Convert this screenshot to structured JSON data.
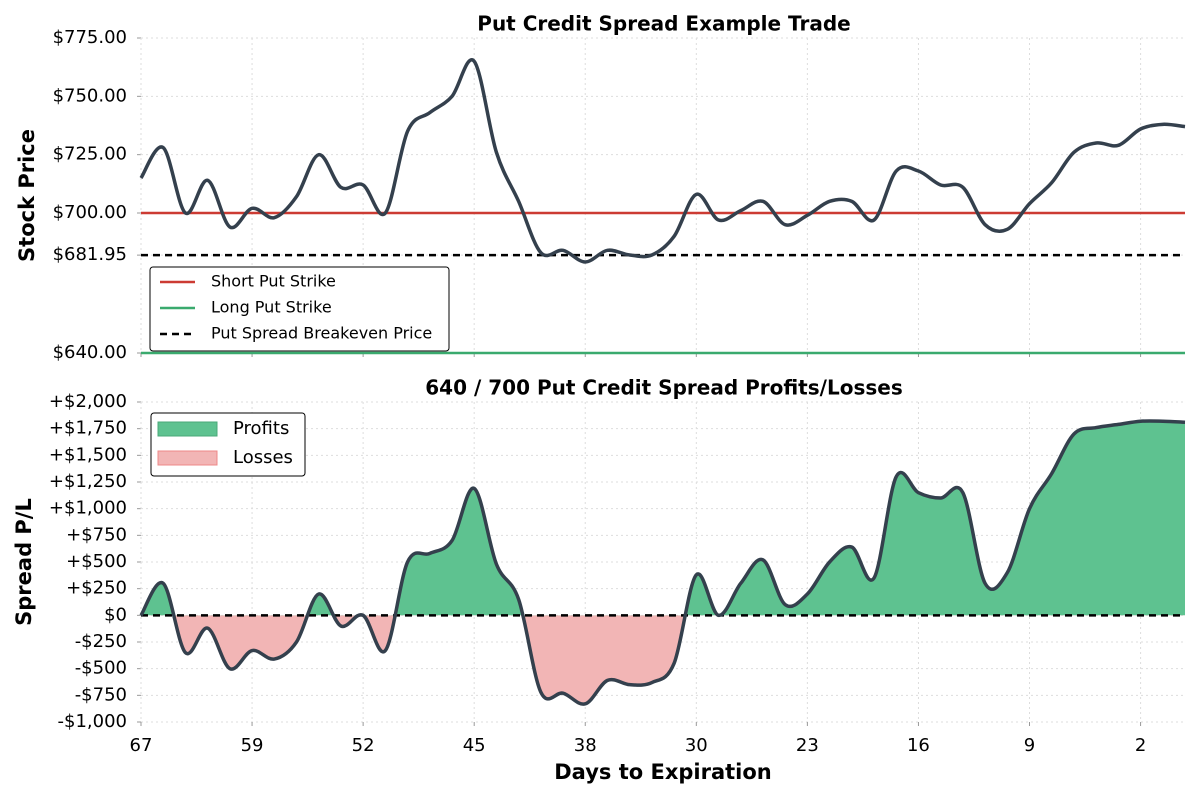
{
  "chart_data": [
    {
      "type": "line",
      "title": "Put Credit Spread Example Trade",
      "ylabel": "Stock Price",
      "x": [
        0,
        1,
        2,
        3,
        4,
        5,
        6,
        7,
        8,
        9,
        10,
        11,
        12,
        13,
        14,
        15,
        16,
        17,
        18,
        19,
        20,
        21,
        22,
        23,
        24,
        25,
        26,
        27,
        28,
        29,
        30,
        31,
        32,
        33,
        34,
        35,
        36,
        37,
        38,
        39,
        40,
        41,
        42,
        43,
        44,
        45,
        46,
        47
      ],
      "values": [
        715,
        728,
        700,
        714,
        694,
        702,
        698,
        707,
        725,
        711,
        712,
        700,
        735,
        743,
        750,
        765,
        726,
        705,
        683,
        684,
        679,
        684,
        682,
        682,
        690,
        708,
        697,
        701,
        705,
        695,
        699,
        705,
        705,
        697,
        718,
        718,
        712,
        711,
        695,
        693,
        704,
        713,
        726,
        730,
        729,
        736,
        738,
        737
      ],
      "color": "#34404d",
      "reference_lines": [
        {
          "name": "Short Put Strike",
          "value": 700,
          "color": "#cc3b33",
          "dash": false
        },
        {
          "name": "Long Put Strike",
          "value": 640,
          "color": "#3aaa6e",
          "dash": false
        },
        {
          "name": "Put Spread Breakeven Price",
          "value": 681.95,
          "color": "#000000",
          "dash": true
        }
      ],
      "xlim": [
        0,
        47
      ],
      "xticks": [
        0,
        5,
        10,
        15,
        20,
        25,
        30,
        35,
        40,
        45
      ],
      "ylim": [
        640,
        775
      ],
      "yticks": [
        {
          "value": 640,
          "label": "$640.00"
        },
        {
          "value": 681.95,
          "label": "$681.95"
        },
        {
          "value": 700,
          "label": "$700.00"
        },
        {
          "value": 725,
          "label": "$725.00"
        },
        {
          "value": 750,
          "label": "$750.00"
        },
        {
          "value": 775,
          "label": "$775.00"
        }
      ],
      "grid": true,
      "legend": "lower left"
    },
    {
      "type": "line",
      "title": "640 / 700 Put Credit Spread Profits/Losses",
      "ylabel": "Spread P/L",
      "xlabel": "Days to Expiration",
      "x": [
        0,
        1,
        2,
        3,
        4,
        5,
        6,
        7,
        8,
        9,
        10,
        11,
        12,
        13,
        14,
        15,
        16,
        17,
        18,
        19,
        20,
        21,
        22,
        23,
        24,
        25,
        26,
        27,
        28,
        29,
        30,
        31,
        32,
        33,
        34,
        35,
        36,
        37,
        38,
        39,
        40,
        41,
        42,
        43,
        44,
        45,
        46,
        47
      ],
      "values": [
        0,
        300,
        -350,
        -120,
        -500,
        -330,
        -410,
        -250,
        200,
        -100,
        0,
        -330,
        500,
        580,
        700,
        1190,
        480,
        150,
        -720,
        -730,
        -830,
        -610,
        -650,
        -630,
        -450,
        380,
        0,
        300,
        520,
        100,
        200,
        500,
        640,
        350,
        1300,
        1150,
        1100,
        1150,
        300,
        400,
        1000,
        1330,
        1700,
        1760,
        1790,
        1820,
        1820,
        1810
      ],
      "color": "#34404d",
      "fills": [
        {
          "name": "Profits",
          "color": "#5ec290",
          "side": "above"
        },
        {
          "name": "Losses",
          "color": "#f2b5b5",
          "side": "below"
        }
      ],
      "reference_lines": [
        {
          "value": 0,
          "color": "#000000",
          "dash": true
        }
      ],
      "xlim": [
        0,
        47
      ],
      "xticks": [
        {
          "value": 0,
          "label": "67"
        },
        {
          "value": 5,
          "label": "59"
        },
        {
          "value": 10,
          "label": "52"
        },
        {
          "value": 15,
          "label": "45"
        },
        {
          "value": 20,
          "label": "38"
        },
        {
          "value": 25,
          "label": "30"
        },
        {
          "value": 30,
          "label": "23"
        },
        {
          "value": 35,
          "label": "16"
        },
        {
          "value": 40,
          "label": "9"
        },
        {
          "value": 45,
          "label": "2"
        }
      ],
      "ylim": [
        -1000,
        2000
      ],
      "yticks": [
        {
          "value": -1000,
          "label": "-$1,000"
        },
        {
          "value": -750,
          "label": "-$750"
        },
        {
          "value": -500,
          "label": "-$500"
        },
        {
          "value": -250,
          "label": "-$250"
        },
        {
          "value": 0,
          "label": "$0"
        },
        {
          "value": 250,
          "label": "+$250"
        },
        {
          "value": 500,
          "label": "+$500"
        },
        {
          "value": 750,
          "label": "+$750"
        },
        {
          "value": 1000,
          "label": "+$1,000"
        },
        {
          "value": 1250,
          "label": "+$1,250"
        },
        {
          "value": 1500,
          "label": "+$1,500"
        },
        {
          "value": 1750,
          "label": "+$1,750"
        },
        {
          "value": 2000,
          "label": "+$2,000"
        }
      ],
      "grid": true,
      "legend": "upper left"
    }
  ]
}
